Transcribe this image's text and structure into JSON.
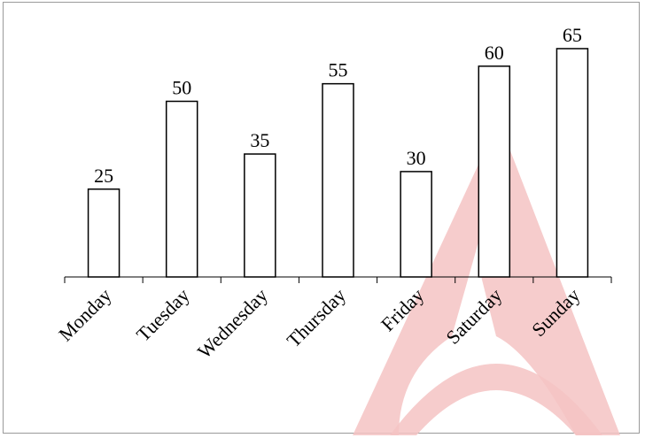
{
  "chart_data": {
    "type": "bar",
    "categories": [
      "Monday",
      "Tuesday",
      "Wednesday",
      "Thursday",
      "Friday",
      "Saturday",
      "Sunday"
    ],
    "values": [
      25,
      50,
      35,
      55,
      30,
      60,
      65
    ],
    "data_labels": [
      "25",
      "50",
      "35",
      "55",
      "30",
      "60",
      "65"
    ],
    "title": "",
    "xlabel": "",
    "ylabel": "",
    "ylim": [
      0,
      65
    ],
    "grid": false,
    "legend": "none",
    "colors": {
      "bar_fill": "#ffffff",
      "bar_stroke": "#000000",
      "watermark": "#f4c3c3"
    }
  }
}
